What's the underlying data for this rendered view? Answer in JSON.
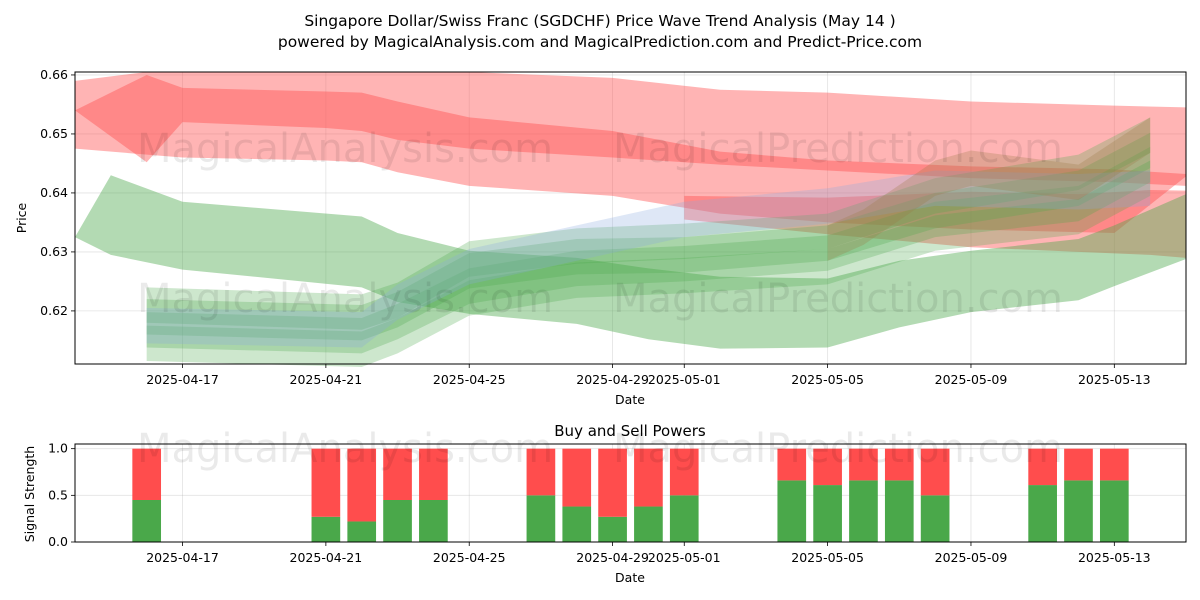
{
  "title_line1": "Singapore Dollar/Swiss Franc (SGDCHF) Price Wave Trend Analysis (May 14 )",
  "title_line2": "powered by MagicalAnalysis.com and MagicalPrediction.com and Predict-Price.com",
  "watermarks": [
    "MagicalAnalysis.com",
    "MagicalPrediction.com"
  ],
  "colors": {
    "bull": "#4aa84a",
    "bear": "#ff4d4d",
    "blue": "#8aa8e0",
    "brown": "#9a7a45"
  },
  "chart_data": [
    {
      "type": "area",
      "xlabel": "Date",
      "ylabel": "Price",
      "x_ticks": [
        "2025-04-17",
        "2025-04-21",
        "2025-04-25",
        "2025-04-29",
        "2025-05-01",
        "2025-05-05",
        "2025-05-09",
        "2025-05-13"
      ],
      "y_ticks": [
        "0.62",
        "0.63",
        "0.64",
        "0.65",
        "0.66"
      ],
      "ylim": [
        0.611,
        0.6605
      ],
      "xlim": [
        "2025-04-14",
        "2025-05-15"
      ],
      "grid": true,
      "series": [
        {
          "color": "red",
          "x": [
            "2025-04-14",
            "2025-04-16",
            "2025-04-17",
            "2025-04-21",
            "2025-04-22",
            "2025-04-23",
            "2025-04-25",
            "2025-04-29",
            "2025-05-02",
            "2025-05-05",
            "2025-05-09",
            "2025-05-13",
            "2025-05-15"
          ],
          "upper": [
            0.659,
            0.6605,
            0.6605,
            0.6605,
            0.6605,
            0.6605,
            0.6605,
            0.6595,
            0.6575,
            0.657,
            0.6555,
            0.6548,
            0.6545
          ],
          "lower": [
            0.6475,
            0.6465,
            0.646,
            0.6455,
            0.6452,
            0.6435,
            0.6412,
            0.6395,
            0.6365,
            0.635,
            0.6338,
            0.6332,
            0.6428
          ]
        },
        {
          "color": "red",
          "x": [
            "2025-04-14",
            "2025-04-16",
            "2025-04-17",
            "2025-04-21",
            "2025-04-22",
            "2025-04-23",
            "2025-04-25",
            "2025-04-29",
            "2025-05-02",
            "2025-05-05",
            "2025-05-09",
            "2025-05-13",
            "2025-05-15"
          ],
          "upper": [
            0.654,
            0.66,
            0.6578,
            0.6572,
            0.657,
            0.6555,
            0.6528,
            0.6505,
            0.647,
            0.6455,
            0.6445,
            0.644,
            0.6432
          ],
          "lower": [
            0.654,
            0.6452,
            0.652,
            0.651,
            0.6505,
            0.649,
            0.6475,
            0.646,
            0.6448,
            0.6438,
            0.6425,
            0.6418,
            0.6412
          ]
        },
        {
          "color": "red",
          "x": [
            "2025-05-01",
            "2025-05-05",
            "2025-05-09",
            "2025-05-12",
            "2025-05-14",
            "2025-05-15"
          ],
          "upper": [
            0.6395,
            0.6392,
            0.6402,
            0.6398,
            0.6405,
            0.6404
          ],
          "lower": [
            0.6355,
            0.633,
            0.6308,
            0.63,
            0.6295,
            0.629
          ]
        },
        {
          "color": "green",
          "x": [
            "2025-04-14",
            "2025-04-15",
            "2025-04-17",
            "2025-04-22",
            "2025-04-23",
            "2025-04-25",
            "2025-04-28",
            "2025-04-30",
            "2025-05-02",
            "2025-05-05",
            "2025-05-07",
            "2025-05-09",
            "2025-05-12",
            "2025-05-13",
            "2025-05-15"
          ],
          "upper": [
            0.6325,
            0.643,
            0.6385,
            0.636,
            0.6332,
            0.6302,
            0.629,
            0.6272,
            0.6258,
            0.6255,
            0.6285,
            0.6302,
            0.6322,
            0.6345,
            0.6398
          ],
          "lower": [
            0.6325,
            0.6295,
            0.627,
            0.624,
            0.6215,
            0.6195,
            0.6178,
            0.6152,
            0.6136,
            0.6138,
            0.6172,
            0.6198,
            0.6218,
            0.6242,
            0.6288
          ]
        },
        {
          "color": "green",
          "x": [
            "2025-04-16",
            "2025-04-22",
            "2025-04-23",
            "2025-04-25",
            "2025-04-28",
            "2025-05-01",
            "2025-05-05",
            "2025-05-08",
            "2025-05-12",
            "2025-05-14"
          ],
          "upper": [
            0.624,
            0.6228,
            0.6248,
            0.6318,
            0.634,
            0.6348,
            0.6365,
            0.6425,
            0.6465,
            0.6528
          ]
        },
        {
          "color": "green",
          "x": [
            "2025-04-16",
            "2025-04-22",
            "2025-04-23",
            "2025-04-25",
            "2025-04-28",
            "2025-05-01",
            "2025-05-05",
            "2025-05-08",
            "2025-05-12",
            "2025-05-14"
          ],
          "upper": [
            0.622,
            0.621,
            0.6232,
            0.6298,
            0.6322,
            0.6325,
            0.6345,
            0.64,
            0.6438,
            0.6502
          ]
        },
        {
          "color": "green",
          "x": [
            "2025-04-16",
            "2025-04-22",
            "2025-04-23",
            "2025-04-25",
            "2025-04-28",
            "2025-05-01",
            "2025-05-05",
            "2025-05-08",
            "2025-05-12",
            "2025-05-14"
          ],
          "upper": [
            0.6198,
            0.6188,
            0.6212,
            0.6272,
            0.6302,
            0.631,
            0.6328,
            0.6385,
            0.6412,
            0.6478
          ]
        },
        {
          "color": "green",
          "x": [
            "2025-04-16",
            "2025-04-22",
            "2025-04-23",
            "2025-04-25",
            "2025-04-28",
            "2025-05-01",
            "2025-05-05",
            "2025-05-08",
            "2025-05-12",
            "2025-05-14"
          ],
          "upper": [
            0.6175,
            0.6165,
            0.6188,
            0.6252,
            0.6282,
            0.629,
            0.6305,
            0.6362,
            0.639,
            0.6455
          ]
        },
        {
          "color": "blue",
          "x": [
            "2025-04-16",
            "2025-04-22",
            "2025-04-23",
            "2025-04-25",
            "2025-04-28",
            "2025-05-01",
            "2025-05-05",
            "2025-05-08",
            "2025-05-12",
            "2025-05-14"
          ],
          "upper": [
            0.6205,
            0.6198,
            0.6245,
            0.6305,
            0.6345,
            0.6385,
            0.6408,
            0.6438,
            0.6432,
            0.6438
          ]
        },
        {
          "color": "brown",
          "x": [
            "2025-05-05",
            "2025-05-06",
            "2025-05-08",
            "2025-05-09",
            "2025-05-12",
            "2025-05-14"
          ],
          "upper": [
            0.6345,
            0.6372,
            0.6455,
            0.6472,
            0.6448,
            0.6528
          ]
        }
      ]
    },
    {
      "type": "bar",
      "title": "Buy and Sell Powers",
      "xlabel": "Date",
      "ylabel": "Signal Strength",
      "x_ticks": [
        "2025-04-17",
        "2025-04-21",
        "2025-04-25",
        "2025-04-29",
        "2025-05-01",
        "2025-05-05",
        "2025-05-09",
        "2025-05-13"
      ],
      "y_ticks": [
        "0.0",
        "0.5",
        "1.0"
      ],
      "ylim": [
        0,
        1.05
      ],
      "grid": true,
      "x": [
        "2025-04-16",
        "2025-04-21",
        "2025-04-22",
        "2025-04-23",
        "2025-04-24",
        "2025-04-27",
        "2025-04-28",
        "2025-04-29",
        "2025-04-30",
        "2025-05-01",
        "2025-05-04",
        "2025-05-05",
        "2025-05-06",
        "2025-05-07",
        "2025-05-08",
        "2025-05-11",
        "2025-05-12",
        "2025-05-13"
      ],
      "buy": [
        0.45,
        0.27,
        0.22,
        0.45,
        0.45,
        0.5,
        0.38,
        0.27,
        0.38,
        0.5,
        0.66,
        0.61,
        0.66,
        0.66,
        0.5,
        0.61,
        0.66,
        0.66
      ],
      "sell": [
        0.55,
        0.73,
        0.78,
        0.55,
        0.55,
        0.5,
        0.62,
        0.73,
        0.62,
        0.5,
        0.34,
        0.39,
        0.34,
        0.34,
        0.5,
        0.39,
        0.34,
        0.34
      ]
    }
  ]
}
